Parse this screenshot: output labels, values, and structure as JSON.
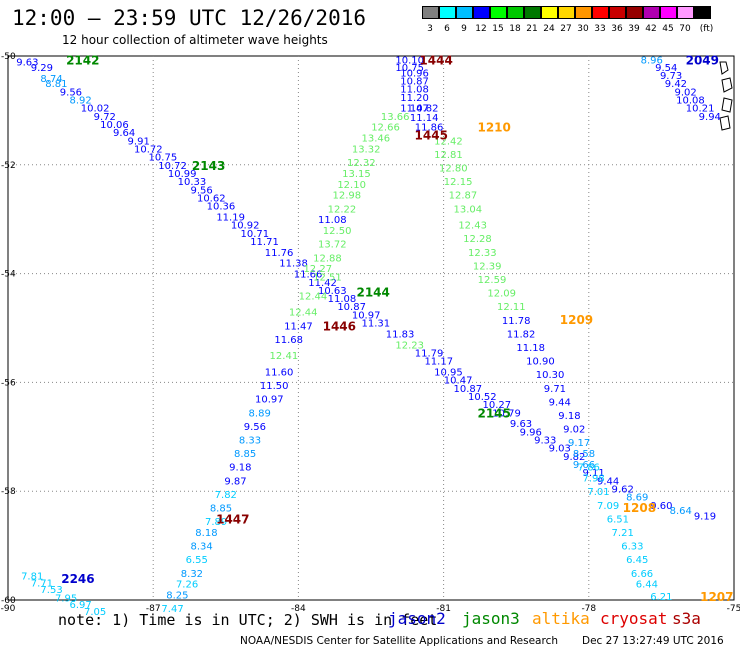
{
  "header": {
    "title": "12:00 – 23:59 UTC 12/26/2016",
    "subtitle": "12 hour collection of altimeter wave heights"
  },
  "legend": {
    "unit": "(ft)",
    "bins": [
      {
        "label": "3",
        "color": "#808080"
      },
      {
        "label": "6",
        "color": "#00ffff"
      },
      {
        "label": "9",
        "color": "#00bfff"
      },
      {
        "label": "12",
        "color": "#0000ff"
      },
      {
        "label": "15",
        "color": "#00ff00"
      },
      {
        "label": "18",
        "color": "#00c800"
      },
      {
        "label": "21",
        "color": "#007800"
      },
      {
        "label": "24",
        "color": "#ffff00"
      },
      {
        "label": "27",
        "color": "#ffd700"
      },
      {
        "label": "30",
        "color": "#ff9600"
      },
      {
        "label": "33",
        "color": "#ff0000"
      },
      {
        "label": "36",
        "color": "#c80000"
      },
      {
        "label": "39",
        "color": "#960000"
      },
      {
        "label": "42",
        "color": "#b000b0"
      },
      {
        "label": "45",
        "color": "#ff00ff"
      },
      {
        "label": "70",
        "color": "#ff99ff"
      },
      {
        "label": "",
        "color": "#000000"
      }
    ]
  },
  "footer": {
    "note": "note: 1) Time is in UTC; 2) SWH is in feet",
    "satellites": [
      {
        "name": "jason2",
        "color": "#0000cc"
      },
      {
        "name": "jason3",
        "color": "#008800"
      },
      {
        "name": "altika",
        "color": "#ff9900"
      },
      {
        "name": "cryosat",
        "color": "#dd0000"
      },
      {
        "name": "s3a",
        "color": "#aa0000"
      }
    ],
    "credit": "NOAA/NESDIS Center for Satellite Applications and Research",
    "timestamp": "Dec 27 13:27:49 UTC 2016"
  },
  "chart_data": {
    "type": "scatter",
    "title": "12:00 – 23:59 UTC 12/26/2016",
    "subtitle": "12 hour collection of altimeter wave heights",
    "xlabel": "",
    "ylabel": "",
    "xlim": [
      -90,
      -75
    ],
    "ylim": [
      -60,
      -50
    ],
    "x_ticks": [
      -90,
      -87,
      -84,
      -81,
      -78,
      -75
    ],
    "y_ticks": [
      -50,
      -52,
      -54,
      -56,
      -58,
      -60
    ],
    "grid": "dotted",
    "colors": {
      "c6": "#00ccff",
      "c9": "#0099ff",
      "c12": "#0000ff",
      "c15": "#66ee66",
      "c18": "#00b400"
    },
    "passes": [
      {
        "id": "2142",
        "label_color": "#008800",
        "label_at": [
          -88.8,
          -50.06
        ]
      },
      {
        "id": "2143",
        "label_color": "#008800",
        "label_at": [
          -86.2,
          -52.0
        ]
      },
      {
        "id": "2144",
        "label_color": "#008800",
        "label_at": [
          -82.8,
          -54.33
        ]
      },
      {
        "id": "2145",
        "label_color": "#008800",
        "label_at": [
          -80.3,
          -56.55
        ]
      },
      {
        "id": "2049",
        "label_color": "#0000cc",
        "label_at": [
          -76.0,
          -50.06
        ]
      },
      {
        "id": "2246",
        "label_color": "#0000cc",
        "label_at": [
          -88.9,
          -59.6
        ]
      },
      {
        "id": "1444",
        "label_color": "#880000",
        "label_at": [
          -81.5,
          -50.06
        ]
      },
      {
        "id": "1445",
        "label_color": "#880000",
        "label_at": [
          -81.6,
          -51.44
        ]
      },
      {
        "id": "1446",
        "label_color": "#880000",
        "label_at": [
          -83.5,
          -54.95
        ]
      },
      {
        "id": "1447",
        "label_color": "#880000",
        "label_at": [
          -85.7,
          -58.5
        ]
      },
      {
        "id": "1210",
        "label_color": "#ff9900",
        "label_at": [
          -80.3,
          -51.3
        ]
      },
      {
        "id": "1209",
        "label_color": "#ff9900",
        "label_at": [
          -78.6,
          -54.83
        ]
      },
      {
        "id": "1208",
        "label_color": "#ff9900",
        "label_at": [
          -77.3,
          -58.29
        ]
      },
      {
        "id": "1207",
        "label_color": "#ff9900",
        "label_at": [
          -75.7,
          -59.93
        ]
      }
    ],
    "points": [
      {
        "x": -89.6,
        "y": -50.1,
        "v": "9.63",
        "c": "c12"
      },
      {
        "x": -89.3,
        "y": -50.2,
        "v": "9.29",
        "c": "c12"
      },
      {
        "x": -89.1,
        "y": -50.4,
        "v": "8.74",
        "c": "c9"
      },
      {
        "x": -89.0,
        "y": -50.5,
        "v": "8.81",
        "c": "c9"
      },
      {
        "x": -88.7,
        "y": -50.65,
        "v": "9.56",
        "c": "c12"
      },
      {
        "x": -88.5,
        "y": -50.8,
        "v": "8.92",
        "c": "c9"
      },
      {
        "x": -88.2,
        "y": -50.95,
        "v": "10.02",
        "c": "c12"
      },
      {
        "x": -88.0,
        "y": -51.1,
        "v": "9.72",
        "c": "c12"
      },
      {
        "x": -87.8,
        "y": -51.25,
        "v": "10.06",
        "c": "c12"
      },
      {
        "x": -87.6,
        "y": -51.4,
        "v": "9.64",
        "c": "c12"
      },
      {
        "x": -87.3,
        "y": -51.55,
        "v": "9.91",
        "c": "c12"
      },
      {
        "x": -87.1,
        "y": -51.7,
        "v": "10.72",
        "c": "c12"
      },
      {
        "x": -86.8,
        "y": -51.85,
        "v": "10.75",
        "c": "c12"
      },
      {
        "x": -86.6,
        "y": -52.0,
        "v": "10.72",
        "c": "c12"
      },
      {
        "x": -86.4,
        "y": -52.15,
        "v": "10.99",
        "c": "c12"
      },
      {
        "x": -86.2,
        "y": -52.3,
        "v": "10.33",
        "c": "c12"
      },
      {
        "x": -86.0,
        "y": -52.45,
        "v": "9.56",
        "c": "c12"
      },
      {
        "x": -85.8,
        "y": -52.6,
        "v": "10.62",
        "c": "c12"
      },
      {
        "x": -85.6,
        "y": -52.75,
        "v": "10.36",
        "c": "c12"
      },
      {
        "x": -85.4,
        "y": -52.95,
        "v": "11.19",
        "c": "c12"
      },
      {
        "x": -85.1,
        "y": -53.1,
        "v": "10.92",
        "c": "c12"
      },
      {
        "x": -84.9,
        "y": -53.25,
        "v": "10.71",
        "c": "c12"
      },
      {
        "x": -84.7,
        "y": -53.4,
        "v": "11.71",
        "c": "c12"
      },
      {
        "x": -84.4,
        "y": -53.6,
        "v": "11.76",
        "c": "c12"
      },
      {
        "x": -84.1,
        "y": -53.8,
        "v": "11.38",
        "c": "c12"
      },
      {
        "x": -83.8,
        "y": -54.0,
        "v": "11.66",
        "c": "c12"
      },
      {
        "x": -83.5,
        "y": -54.15,
        "v": "11.42",
        "c": "c12"
      },
      {
        "x": -83.3,
        "y": -54.3,
        "v": "10.63",
        "c": "c12"
      },
      {
        "x": -83.1,
        "y": -54.45,
        "v": "11.08",
        "c": "c12"
      },
      {
        "x": -82.9,
        "y": -54.6,
        "v": "10.87",
        "c": "c12"
      },
      {
        "x": -82.6,
        "y": -54.75,
        "v": "10.97",
        "c": "c12"
      },
      {
        "x": -82.4,
        "y": -54.9,
        "v": "11.31",
        "c": "c12"
      },
      {
        "x": -81.9,
        "y": -55.1,
        "v": "11.83",
        "c": "c12"
      },
      {
        "x": -81.7,
        "y": -55.3,
        "v": "12.23",
        "c": "c15"
      },
      {
        "x": -81.3,
        "y": -55.45,
        "v": "11.79",
        "c": "c12"
      },
      {
        "x": -81.1,
        "y": -55.6,
        "v": "11.17",
        "c": "c12"
      },
      {
        "x": -80.9,
        "y": -55.8,
        "v": "10.95",
        "c": "c12"
      },
      {
        "x": -80.7,
        "y": -55.95,
        "v": "10.47",
        "c": "c12"
      },
      {
        "x": -80.5,
        "y": -56.1,
        "v": "10.87",
        "c": "c12"
      },
      {
        "x": -80.2,
        "y": -56.25,
        "v": "10.52",
        "c": "c12"
      },
      {
        "x": -79.9,
        "y": -56.4,
        "v": "10.27",
        "c": "c12"
      },
      {
        "x": -79.7,
        "y": -56.55,
        "v": "10.79",
        "c": "c12"
      },
      {
        "x": -79.4,
        "y": -56.75,
        "v": "9.63",
        "c": "c12"
      },
      {
        "x": -79.2,
        "y": -56.9,
        "v": "9.96",
        "c": "c12"
      },
      {
        "x": -78.9,
        "y": -57.05,
        "v": "9.33",
        "c": "c12"
      },
      {
        "x": -78.6,
        "y": -57.2,
        "v": "9.03",
        "c": "c12"
      },
      {
        "x": -78.3,
        "y": -57.35,
        "v": "9.82",
        "c": "c12"
      },
      {
        "x": -78.1,
        "y": -57.5,
        "v": "9.66",
        "c": "c9"
      },
      {
        "x": -77.9,
        "y": -57.65,
        "v": "9.11",
        "c": "c12"
      },
      {
        "x": -77.6,
        "y": -57.8,
        "v": "9.44",
        "c": "c12"
      },
      {
        "x": -77.3,
        "y": -57.95,
        "v": "9.62",
        "c": "c12"
      },
      {
        "x": -77.0,
        "y": -58.1,
        "v": "8.69",
        "c": "c9"
      },
      {
        "x": -76.5,
        "y": -58.25,
        "v": "9.60",
        "c": "c12"
      },
      {
        "x": -76.1,
        "y": -58.35,
        "v": "8.64",
        "c": "c9"
      },
      {
        "x": -75.6,
        "y": -58.45,
        "v": "9.19",
        "c": "c12"
      },
      {
        "x": -81.7,
        "y": -50.06,
        "v": "10.10",
        "c": "c12"
      },
      {
        "x": -81.7,
        "y": -50.2,
        "v": "10.75",
        "c": "c12"
      },
      {
        "x": -81.6,
        "y": -50.3,
        "v": "10.96",
        "c": "c12"
      },
      {
        "x": -81.6,
        "y": -50.45,
        "v": "10.87",
        "c": "c12"
      },
      {
        "x": -81.6,
        "y": -50.6,
        "v": "11.08",
        "c": "c12"
      },
      {
        "x": -81.6,
        "y": -50.75,
        "v": "11.20",
        "c": "c12"
      },
      {
        "x": -81.6,
        "y": -50.95,
        "v": "11.47",
        "c": "c12"
      },
      {
        "x": -81.4,
        "y": -50.95,
        "v": "10.82",
        "c": "c12"
      },
      {
        "x": -81.4,
        "y": -51.12,
        "v": "11.14",
        "c": "c12"
      },
      {
        "x": -81.3,
        "y": -51.3,
        "v": "11.86",
        "c": "c12"
      },
      {
        "x": -82.0,
        "y": -51.1,
        "v": "13.66",
        "c": "c15"
      },
      {
        "x": -82.2,
        "y": -51.3,
        "v": "12.66",
        "c": "c15"
      },
      {
        "x": -82.4,
        "y": -51.5,
        "v": "13.46",
        "c": "c15"
      },
      {
        "x": -82.6,
        "y": -51.7,
        "v": "13.32",
        "c": "c15"
      },
      {
        "x": -82.7,
        "y": -51.95,
        "v": "12.32",
        "c": "c15"
      },
      {
        "x": -82.8,
        "y": -52.15,
        "v": "13.15",
        "c": "c15"
      },
      {
        "x": -82.9,
        "y": -52.35,
        "v": "12.10",
        "c": "c15"
      },
      {
        "x": -83.0,
        "y": -52.55,
        "v": "12.98",
        "c": "c15"
      },
      {
        "x": -83.1,
        "y": -52.8,
        "v": "12.22",
        "c": "c15"
      },
      {
        "x": -83.3,
        "y": -53.0,
        "v": "11.08",
        "c": "c12"
      },
      {
        "x": -83.2,
        "y": -53.2,
        "v": "12.50",
        "c": "c15"
      },
      {
        "x": -83.3,
        "y": -53.45,
        "v": "13.72",
        "c": "c15"
      },
      {
        "x": -83.4,
        "y": -53.7,
        "v": "12.88",
        "c": "c15"
      },
      {
        "x": -83.6,
        "y": -53.9,
        "v": "12.27",
        "c": "c15"
      },
      {
        "x": -83.4,
        "y": -54.05,
        "v": "12.51",
        "c": "c15"
      },
      {
        "x": -83.7,
        "y": -54.4,
        "v": "12.44",
        "c": "c15"
      },
      {
        "x": -83.9,
        "y": -54.7,
        "v": "12.44",
        "c": "c15"
      },
      {
        "x": -84.0,
        "y": -54.95,
        "v": "11.47",
        "c": "c12"
      },
      {
        "x": -84.2,
        "y": -55.2,
        "v": "11.68",
        "c": "c12"
      },
      {
        "x": -84.3,
        "y": -55.5,
        "v": "12.41",
        "c": "c15"
      },
      {
        "x": -84.4,
        "y": -55.8,
        "v": "11.60",
        "c": "c12"
      },
      {
        "x": -84.5,
        "y": -56.05,
        "v": "11.50",
        "c": "c12"
      },
      {
        "x": -84.6,
        "y": -56.3,
        "v": "10.97",
        "c": "c12"
      },
      {
        "x": -84.8,
        "y": -56.55,
        "v": "8.89",
        "c": "c9"
      },
      {
        "x": -84.9,
        "y": -56.8,
        "v": "9.56",
        "c": "c12"
      },
      {
        "x": -85.0,
        "y": -57.05,
        "v": "8.33",
        "c": "c9"
      },
      {
        "x": -85.1,
        "y": -57.3,
        "v": "8.85",
        "c": "c9"
      },
      {
        "x": -85.2,
        "y": -57.55,
        "v": "9.18",
        "c": "c12"
      },
      {
        "x": -85.3,
        "y": -57.8,
        "v": "9.87",
        "c": "c12"
      },
      {
        "x": -85.5,
        "y": -58.05,
        "v": "7.82",
        "c": "c6"
      },
      {
        "x": -85.6,
        "y": -58.3,
        "v": "8.85",
        "c": "c9"
      },
      {
        "x": -85.7,
        "y": -58.55,
        "v": "7.89",
        "c": "c6"
      },
      {
        "x": -85.9,
        "y": -58.75,
        "v": "8.18",
        "c": "c9"
      },
      {
        "x": -86.0,
        "y": -59.0,
        "v": "8.34",
        "c": "c9"
      },
      {
        "x": -86.1,
        "y": -59.25,
        "v": "6.55",
        "c": "c6"
      },
      {
        "x": -86.2,
        "y": -59.5,
        "v": "8.32",
        "c": "c9"
      },
      {
        "x": -86.3,
        "y": -59.7,
        "v": "7.26",
        "c": "c6"
      },
      {
        "x": -86.5,
        "y": -59.9,
        "v": "8.25",
        "c": "c9"
      },
      {
        "x": -86.6,
        "y": -60.15,
        "v": "7.47",
        "c": "c6"
      },
      {
        "x": -80.9,
        "y": -51.55,
        "v": "12.42",
        "c": "c15"
      },
      {
        "x": -80.9,
        "y": -51.8,
        "v": "12.81",
        "c": "c15"
      },
      {
        "x": -80.8,
        "y": -52.05,
        "v": "12.80",
        "c": "c15"
      },
      {
        "x": -80.7,
        "y": -52.3,
        "v": "12.15",
        "c": "c15"
      },
      {
        "x": -80.6,
        "y": -52.55,
        "v": "12.87",
        "c": "c15"
      },
      {
        "x": -80.5,
        "y": -52.8,
        "v": "13.04",
        "c": "c15"
      },
      {
        "x": -80.4,
        "y": -53.1,
        "v": "12.43",
        "c": "c15"
      },
      {
        "x": -80.3,
        "y": -53.35,
        "v": "12.28",
        "c": "c15"
      },
      {
        "x": -80.2,
        "y": -53.6,
        "v": "12.33",
        "c": "c15"
      },
      {
        "x": -80.1,
        "y": -53.85,
        "v": "12.39",
        "c": "c15"
      },
      {
        "x": -80.0,
        "y": -54.1,
        "v": "12.59",
        "c": "c15"
      },
      {
        "x": -79.8,
        "y": -54.35,
        "v": "12.09",
        "c": "c15"
      },
      {
        "x": -79.6,
        "y": -54.6,
        "v": "12.11",
        "c": "c15"
      },
      {
        "x": -79.5,
        "y": -54.85,
        "v": "11.78",
        "c": "c12"
      },
      {
        "x": -79.4,
        "y": -55.1,
        "v": "11.82",
        "c": "c12"
      },
      {
        "x": -79.2,
        "y": -55.35,
        "v": "11.18",
        "c": "c12"
      },
      {
        "x": -79.0,
        "y": -55.6,
        "v": "10.90",
        "c": "c12"
      },
      {
        "x": -78.8,
        "y": -55.85,
        "v": "10.30",
        "c": "c12"
      },
      {
        "x": -78.7,
        "y": -56.1,
        "v": "9.71",
        "c": "c12"
      },
      {
        "x": -78.6,
        "y": -56.35,
        "v": "9.44",
        "c": "c12"
      },
      {
        "x": -78.4,
        "y": -56.6,
        "v": "9.18",
        "c": "c12"
      },
      {
        "x": -78.3,
        "y": -56.85,
        "v": "9.02",
        "c": "c12"
      },
      {
        "x": -78.2,
        "y": -57.1,
        "v": "9.17",
        "c": "c9"
      },
      {
        "x": -78.1,
        "y": -57.3,
        "v": "8.58",
        "c": "c9"
      },
      {
        "x": -78.0,
        "y": -57.55,
        "v": "7.86",
        "c": "c6"
      },
      {
        "x": -77.9,
        "y": -57.75,
        "v": "7.98",
        "c": "c6"
      },
      {
        "x": -77.8,
        "y": -58.0,
        "v": "7.01",
        "c": "c6"
      },
      {
        "x": -77.6,
        "y": -58.25,
        "v": "7.09",
        "c": "c6"
      },
      {
        "x": -77.4,
        "y": -58.5,
        "v": "6.51",
        "c": "c6"
      },
      {
        "x": -77.3,
        "y": -58.75,
        "v": "7.21",
        "c": "c6"
      },
      {
        "x": -77.1,
        "y": -59.0,
        "v": "6.33",
        "c": "c6"
      },
      {
        "x": -77.0,
        "y": -59.25,
        "v": "6.45",
        "c": "c6"
      },
      {
        "x": -76.9,
        "y": -59.5,
        "v": "6.66",
        "c": "c6"
      },
      {
        "x": -76.8,
        "y": -59.7,
        "v": "6.44",
        "c": "c6"
      },
      {
        "x": -76.5,
        "y": -59.93,
        "v": "6.21",
        "c": "c6"
      },
      {
        "x": -76.7,
        "y": -50.06,
        "v": "8.96",
        "c": "c9"
      },
      {
        "x": -76.4,
        "y": -50.2,
        "v": "9.54",
        "c": "c12"
      },
      {
        "x": -76.3,
        "y": -50.35,
        "v": "9.73",
        "c": "c12"
      },
      {
        "x": -76.2,
        "y": -50.5,
        "v": "9.42",
        "c": "c12"
      },
      {
        "x": -76.0,
        "y": -50.65,
        "v": "9.02",
        "c": "c12"
      },
      {
        "x": -75.9,
        "y": -50.8,
        "v": "10.08",
        "c": "c12"
      },
      {
        "x": -75.7,
        "y": -50.95,
        "v": "10.21",
        "c": "c12"
      },
      {
        "x": -75.5,
        "y": -51.1,
        "v": "9.94",
        "c": "c12"
      },
      {
        "x": -89.5,
        "y": -59.55,
        "v": "7.81",
        "c": "c6"
      },
      {
        "x": -89.3,
        "y": -59.68,
        "v": "7.71",
        "c": "c6"
      },
      {
        "x": -89.1,
        "y": -59.8,
        "v": "7.53",
        "c": "c6"
      },
      {
        "x": -88.8,
        "y": -59.95,
        "v": "7.95",
        "c": "c6"
      },
      {
        "x": -88.5,
        "y": -60.07,
        "v": "6.97",
        "c": "c6"
      },
      {
        "x": -88.2,
        "y": -60.2,
        "v": "7.05",
        "c": "c6"
      }
    ]
  }
}
